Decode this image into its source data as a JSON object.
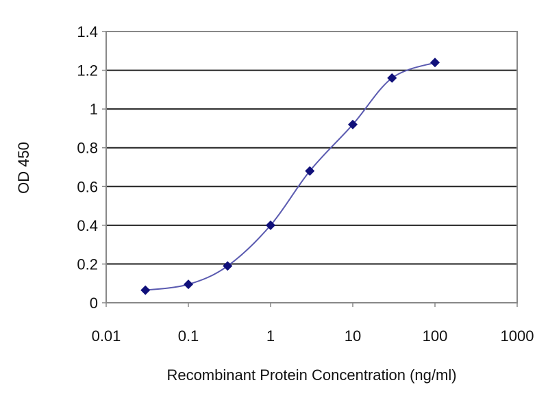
{
  "chart_data": {
    "type": "line",
    "title": "",
    "xlabel": "Recombinant Protein Concentration (ng/ml)",
    "ylabel": "OD 450",
    "x_scale": "log",
    "xlim": [
      0.01,
      1000
    ],
    "ylim": [
      0,
      1.4
    ],
    "x_ticks": [
      "0.01",
      "0.1",
      "1",
      "10",
      "100",
      "1000"
    ],
    "y_ticks": [
      "0",
      "0.2",
      "0.4",
      "0.6",
      "0.8",
      "1",
      "1.2",
      "1.4"
    ],
    "grid": "horizontal",
    "legend": "none",
    "series": [
      {
        "x": [
          0.03,
          0.1,
          0.3,
          1,
          3,
          10,
          30,
          100
        ],
        "values": [
          0.065,
          0.095,
          0.19,
          0.4,
          0.68,
          0.92,
          1.16,
          1.24
        ],
        "color": "#1a1a8c",
        "marker": "diamond"
      }
    ],
    "colors": {
      "line": "#5a5ab0",
      "marker": "#10107a",
      "grid": "#222222",
      "frame": "#888888"
    }
  }
}
